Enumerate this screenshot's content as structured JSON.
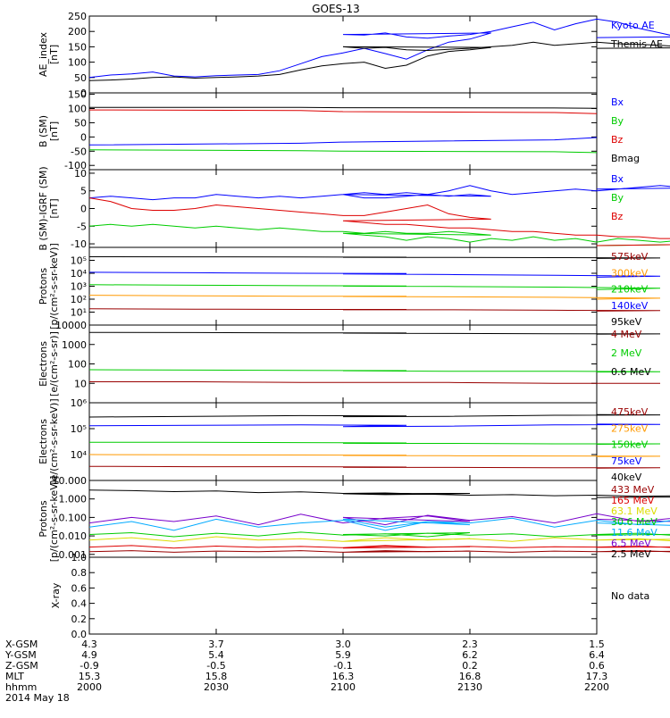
{
  "title": "GOES-13",
  "colors": {
    "black": "#000000",
    "blue": "#0000ff",
    "red": "#dd0000",
    "green": "#00cc00",
    "orange": "#ff9900",
    "darkred": "#990000",
    "yellow": "#dddd00",
    "cyan": "#00aaff",
    "purple": "#7700cc"
  },
  "chart_data": [
    {
      "id": "ae",
      "type": "line",
      "ylabel": "AE_index\n[nT]",
      "scale": "linear",
      "ylim": [
        0,
        250
      ],
      "ticks": [
        "0",
        "50",
        "100",
        "150",
        "200",
        "250"
      ],
      "tickvals": [
        0,
        50,
        100,
        150,
        200,
        250
      ],
      "legend": [
        "Kyoto AE",
        "Themis AE"
      ],
      "legend_colors": [
        "blue",
        "black"
      ],
      "x": [
        2000,
        2005,
        2010,
        2015,
        2020,
        2025,
        2030,
        2035,
        2040,
        2045,
        2050,
        2055,
        2060,
        2065,
        2070,
        2075,
        2080,
        2085,
        2090,
        2095,
        2100,
        2105,
        2110,
        2115,
        2120,
        2125,
        2130,
        2135,
        2140,
        2145,
        2150,
        2155,
        2160,
        2165,
        2170,
        2175,
        2180,
        2185,
        2190,
        2195,
        2200
      ],
      "series": [
        {
          "name": "Kyoto AE",
          "color": "blue",
          "values": [
            50,
            58,
            62,
            68,
            55,
            52,
            56,
            58,
            60,
            72,
            95,
            118,
            130,
            145,
            128,
            110,
            140,
            165,
            175,
            195,
            190,
            188,
            195,
            182,
            178,
            185,
            190,
            200,
            215,
            230,
            205,
            225,
            240,
            230,
            210,
            195,
            180,
            190,
            188,
            185,
            180
          ]
        },
        {
          "name": "Themis AE",
          "color": "black",
          "values": [
            40,
            42,
            45,
            50,
            52,
            48,
            50,
            52,
            55,
            60,
            75,
            88,
            95,
            100,
            80,
            90,
            120,
            135,
            140,
            148,
            150,
            145,
            148,
            140,
            138,
            142,
            145,
            150,
            155,
            165,
            155,
            160,
            165,
            160,
            158,
            155,
            150,
            148,
            150,
            148,
            145
          ]
        }
      ]
    },
    {
      "id": "bsm",
      "type": "line",
      "ylabel": "B (SM)\n[nT]",
      "scale": "linear",
      "ylim": [
        -115,
        155
      ],
      "ticks": [
        "-100",
        "-50",
        "0",
        "50",
        "100",
        "150"
      ],
      "tickvals": [
        -100,
        -50,
        0,
        50,
        100,
        150
      ],
      "legend": [
        "Bx",
        "By",
        "Bz",
        "Bmag"
      ],
      "legend_colors": [
        "blue",
        "green",
        "red",
        "black"
      ],
      "x": [
        2000,
        2050,
        2100,
        2150,
        2200
      ],
      "series": [
        {
          "name": "Bx",
          "color": "blue",
          "values": [
            -28,
            -22,
            -18,
            -10,
            -2
          ]
        },
        {
          "name": "By",
          "color": "green",
          "values": [
            -45,
            -48,
            -50,
            -52,
            -55
          ]
        },
        {
          "name": "Bz",
          "color": "red",
          "values": [
            95,
            93,
            89,
            86,
            82
          ]
        },
        {
          "name": "Bmag",
          "color": "black",
          "values": [
            104,
            104,
            103,
            102,
            101
          ]
        }
      ]
    },
    {
      "id": "bigrf",
      "type": "line",
      "ylabel": "B (SM)-IGRF (SM)\n[nT]",
      "scale": "linear",
      "ylim": [
        -11,
        11
      ],
      "ticks": [
        "-10",
        "-5",
        "0",
        "5",
        "10"
      ],
      "tickvals": [
        -10,
        -5,
        0,
        5,
        10
      ],
      "legend": [
        "Bx",
        "By",
        "Bz"
      ],
      "legend_colors": [
        "blue",
        "green",
        "red"
      ],
      "x": [
        2000,
        2005,
        2010,
        2015,
        2020,
        2025,
        2030,
        2035,
        2040,
        2045,
        2050,
        2055,
        2060,
        2065,
        2070,
        2075,
        2080,
        2085,
        2090,
        2095,
        2100,
        2105,
        2110,
        2115,
        2120,
        2125,
        2130,
        2135,
        2140,
        2145,
        2150,
        2155,
        2160,
        2165,
        2170,
        2175,
        2180,
        2185,
        2190,
        2195,
        2200
      ],
      "series": [
        {
          "name": "Bx",
          "color": "blue",
          "values": [
            3,
            3.5,
            3,
            2.5,
            3,
            3,
            4,
            3.5,
            3,
            3.5,
            3,
            3.5,
            4,
            3,
            3,
            3.5,
            4,
            3.5,
            4,
            3.5,
            4,
            4.5,
            4,
            4.5,
            4,
            5,
            6.5,
            5,
            4,
            4.5,
            5,
            5.5,
            5,
            5.5,
            6,
            6.5,
            6,
            6.5,
            6,
            6,
            5.5
          ]
        },
        {
          "name": "By",
          "color": "green",
          "values": [
            -5,
            -4.5,
            -5,
            -4.5,
            -5,
            -5.5,
            -5,
            -5.5,
            -6,
            -5.5,
            -6,
            -6.5,
            -6.5,
            -7,
            -6.5,
            -7,
            -7,
            -6.5,
            -7,
            -7.5,
            -7,
            -7.5,
            -8,
            -9,
            -8,
            -8.5,
            -9.5,
            -8.5,
            -9,
            -8,
            -9,
            -8.5,
            -9.5,
            -8.5,
            -9,
            -9.5,
            -9,
            -9.5,
            -9,
            -10,
            -10.5
          ]
        },
        {
          "name": "Bz",
          "color": "red",
          "values": [
            3,
            2,
            0,
            -0.5,
            -0.5,
            0,
            1,
            0.5,
            0,
            -0.5,
            -1,
            -1.5,
            -2,
            -2,
            -1,
            0,
            1,
            -1.5,
            -2.5,
            -3,
            -3.5,
            -4,
            -4.5,
            -4.5,
            -5,
            -5.5,
            -5.5,
            -6,
            -6.5,
            -6.5,
            -7,
            -7.5,
            -7.5,
            -8,
            -8,
            -8.5,
            -8.5,
            -9,
            -9.5,
            -10,
            -10.5
          ]
        }
      ]
    },
    {
      "id": "prot1",
      "type": "line",
      "ylabel": "Protons\n[p/(cm²-s-sr-keV)]",
      "scale": "log",
      "ylim": [
        1,
        1000000
      ],
      "ticks": [
        "10¹",
        "10²",
        "10³",
        "10⁴",
        "10⁵"
      ],
      "tickvals": [
        10,
        100,
        1000,
        10000,
        100000
      ],
      "legend": [
        "575keV",
        "300keV",
        "210keV",
        "140keV",
        "95keV"
      ],
      "legend_colors": [
        "darkred",
        "orange",
        "green",
        "blue",
        "black"
      ],
      "x": [
        2000,
        2025,
        2050,
        2075,
        2100,
        2125,
        2150,
        2175,
        2200
      ],
      "series": [
        {
          "name": "95keV",
          "color": "black",
          "values": [
            190000,
            185000,
            180000,
            175000,
            170000,
            165000,
            160000,
            150000,
            140000
          ]
        },
        {
          "name": "140keV",
          "color": "blue",
          "values": [
            12000,
            11000,
            10000,
            9500,
            9000,
            8000,
            7000,
            6000,
            5000
          ]
        },
        {
          "name": "210keV",
          "color": "green",
          "values": [
            1300,
            1200,
            1100,
            1050,
            1000,
            950,
            850,
            700,
            550
          ]
        },
        {
          "name": "300keV",
          "color": "orange",
          "values": [
            200,
            180,
            170,
            165,
            160,
            150,
            140,
            120,
            100
          ]
        },
        {
          "name": "575keV",
          "color": "darkred",
          "values": [
            18,
            17,
            16,
            16,
            15,
            15,
            14,
            13,
            12
          ]
        }
      ]
    },
    {
      "id": "elec1",
      "type": "line",
      "ylabel": "Electrons\n[e/(cm²-s-sr)]",
      "scale": "log",
      "ylim": [
        1,
        10000
      ],
      "ticks": [
        "10",
        "100",
        "1000",
        "10000"
      ],
      "tickvals": [
        10,
        100,
        1000,
        10000
      ],
      "legend": [
        "4 MeV",
        "2 MeV",
        "0.6 MeV"
      ],
      "legend_colors": [
        "darkred",
        "green",
        "black"
      ],
      "x": [
        2000,
        2025,
        2050,
        2075,
        2100,
        2125,
        2150,
        2175,
        2200
      ],
      "series": [
        {
          "name": "0.6 MeV",
          "color": "black",
          "values": [
            4200,
            4100,
            4000,
            3900,
            3800,
            3700,
            3600,
            3500,
            3400
          ]
        },
        {
          "name": "2 MeV",
          "color": "green",
          "values": [
            50,
            48,
            46,
            45,
            44,
            42,
            42,
            40,
            38
          ]
        },
        {
          "name": "4 MeV",
          "color": "darkred",
          "values": [
            12,
            12,
            11,
            11,
            11,
            11,
            10,
            10,
            10
          ]
        }
      ]
    },
    {
      "id": "elec2",
      "type": "line",
      "ylabel": "Electrons\n[e/(cm²-s-sr-keV)]",
      "scale": "log",
      "ylim": [
        1000,
        1000000
      ],
      "ticks": [
        "10⁴",
        "10⁵",
        "10⁶"
      ],
      "tickvals": [
        10000,
        100000,
        1000000
      ],
      "legend": [
        "475keV",
        "275keV",
        "150keV",
        "75keV",
        "40keV"
      ],
      "legend_colors": [
        "darkred",
        "orange",
        "green",
        "blue",
        "black"
      ],
      "x": [
        2000,
        2025,
        2050,
        2075,
        2100,
        2125,
        2150,
        2175,
        2200
      ],
      "series": [
        {
          "name": "40keV",
          "color": "black",
          "values": [
            280000,
            300000,
            320000,
            310000,
            290000,
            300000,
            330000,
            340000,
            350000
          ]
        },
        {
          "name": "75keV",
          "color": "blue",
          "values": [
            130000,
            135000,
            140000,
            135000,
            120000,
            125000,
            140000,
            145000,
            150000
          ]
        },
        {
          "name": "150keV",
          "color": "green",
          "values": [
            30000,
            30000,
            29000,
            28000,
            27000,
            27000,
            26000,
            26000,
            25000
          ]
        },
        {
          "name": "275keV",
          "color": "orange",
          "values": [
            10000,
            9800,
            9600,
            9400,
            9200,
            9000,
            8800,
            8600,
            8400
          ]
        },
        {
          "name": "475keV",
          "color": "darkred",
          "values": [
            3500,
            3400,
            3400,
            3300,
            3200,
            3200,
            3100,
            3100,
            3000
          ]
        }
      ]
    },
    {
      "id": "prot2",
      "type": "line",
      "ylabel": "Protons\n[p/(cm²-s-sr-keV)]",
      "scale": "log",
      "ylim": [
        0.0007,
        10
      ],
      "ticks": [
        "0.001",
        "0.010",
        "0.100",
        "1.000",
        "10.000"
      ],
      "tickvals": [
        0.001,
        0.01,
        0.1,
        1,
        10
      ],
      "legend": [
        "433 MeV",
        "165 MeV",
        "63.1 MeV",
        "30.6 MeV",
        "11.6 MeV",
        "6.5 MeV",
        "2.5 MeV"
      ],
      "legend_colors": [
        "darkred",
        "red",
        "yellow",
        "green",
        "cyan",
        "purple",
        "black"
      ],
      "x": [
        2000,
        2010,
        2020,
        2030,
        2040,
        2050,
        2060,
        2070,
        2080,
        2090,
        2100,
        2110,
        2120,
        2130,
        2140,
        2150,
        2160,
        2170,
        2180,
        2190,
        2200
      ],
      "series": [
        {
          "name": "2.5 MeV",
          "color": "black",
          "values": [
            3,
            2.8,
            2.5,
            2.7,
            2.2,
            2.4,
            2.0,
            2.1,
            1.8,
            2.0,
            1.9,
            1.7,
            1.8,
            1.6,
            1.7,
            1.5,
            1.6,
            1.4,
            1.5,
            1.3,
            1.2
          ]
        },
        {
          "name": "6.5 MeV",
          "color": "purple",
          "values": [
            0.05,
            0.1,
            0.06,
            0.12,
            0.04,
            0.15,
            0.05,
            0.09,
            0.12,
            0.06,
            0.1,
            0.04,
            0.13,
            0.07,
            0.11,
            0.05,
            0.16,
            0.06,
            0.1,
            0.05,
            0.08
          ]
        },
        {
          "name": "11.6 MeV",
          "color": "cyan",
          "values": [
            0.03,
            0.06,
            0.02,
            0.08,
            0.03,
            0.05,
            0.07,
            0.02,
            0.06,
            0.04,
            0.08,
            0.03,
            0.06,
            0.05,
            0.09,
            0.03,
            0.07,
            0.04,
            0.08,
            0.03,
            0.05
          ]
        },
        {
          "name": "30.6 MeV",
          "color": "green",
          "values": [
            0.012,
            0.015,
            0.009,
            0.014,
            0.01,
            0.016,
            0.011,
            0.013,
            0.009,
            0.015,
            0.012,
            0.01,
            0.014,
            0.011,
            0.013,
            0.009,
            0.012,
            0.014,
            0.01,
            0.013,
            0.011
          ]
        },
        {
          "name": "63.1 MeV",
          "color": "yellow",
          "values": [
            0.006,
            0.008,
            0.005,
            0.009,
            0.006,
            0.007,
            0.005,
            0.008,
            0.006,
            0.007,
            0.005,
            0.008,
            0.006,
            0.007,
            0.005,
            0.008,
            0.006,
            0.007,
            0.005,
            0.007,
            0.006
          ]
        },
        {
          "name": "165 MeV",
          "color": "red",
          "values": [
            0.0025,
            0.003,
            0.0022,
            0.0028,
            0.0024,
            0.0027,
            0.0023,
            0.003,
            0.0025,
            0.0026,
            0.0022,
            0.0028,
            0.0024,
            0.0027,
            0.0023,
            0.0026,
            0.0025,
            0.0028,
            0.0022,
            0.0026,
            0.0024
          ]
        },
        {
          "name": "433 MeV",
          "color": "darkred",
          "values": [
            0.0014,
            0.0016,
            0.0013,
            0.0015,
            0.0014,
            0.0016,
            0.0013,
            0.0015,
            0.0014,
            0.0015,
            0.0013,
            0.0016,
            0.0014,
            0.0015,
            0.0013,
            0.0015,
            0.0014,
            0.0016,
            0.0013,
            0.0015,
            0.0014
          ]
        }
      ]
    },
    {
      "id": "xray",
      "type": "line",
      "ylabel": "X-ray",
      "scale": "linear",
      "ylim": [
        0,
        1
      ],
      "ticks": [
        "0.0",
        "0.2",
        "0.4",
        "0.6",
        "0.8",
        "1.0"
      ],
      "tickvals": [
        0,
        0.2,
        0.4,
        0.6,
        0.8,
        1.0
      ],
      "legend": [
        "No data"
      ],
      "legend_colors": [
        "black"
      ],
      "series": []
    }
  ],
  "x_axis": {
    "rows": [
      {
        "label": "X-GSM",
        "values": [
          "4.3",
          "3.7",
          "3.0",
          "2.3",
          "1.5"
        ]
      },
      {
        "label": "Y-GSM",
        "values": [
          "4.9",
          "5.4",
          "5.9",
          "6.2",
          "6.4"
        ]
      },
      {
        "label": "Z-GSM",
        "values": [
          "-0.9",
          "-0.5",
          "-0.1",
          "0.2",
          "0.6"
        ]
      },
      {
        "label": "MLT",
        "values": [
          "15.3",
          "15.8",
          "16.3",
          "16.8",
          "17.3"
        ]
      },
      {
        "label": "hhmm",
        "values": [
          "2000",
          "2030",
          "2100",
          "2130",
          "2200"
        ]
      }
    ],
    "date": "2014 May 18"
  }
}
